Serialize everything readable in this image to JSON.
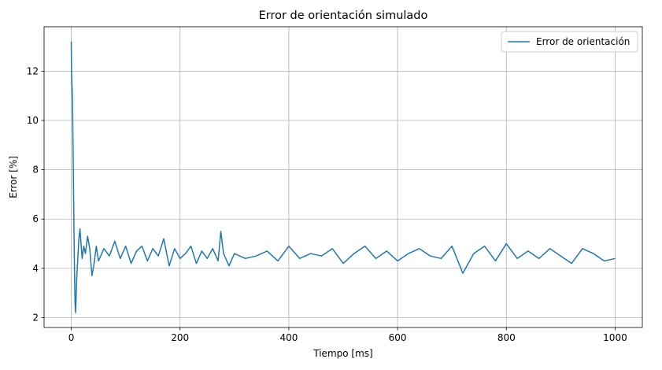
{
  "chart_data": {
    "type": "line",
    "title": "Error de orientación simulado",
    "xlabel": "Tiempo [ms]",
    "ylabel": "Error [%]",
    "xlim": [
      -50,
      1050
    ],
    "ylim": [
      1.6,
      13.8
    ],
    "xticks": [
      0,
      200,
      400,
      600,
      800,
      1000
    ],
    "yticks": [
      2,
      4,
      6,
      8,
      10,
      12
    ],
    "grid": true,
    "legend_position": "upper right",
    "series": [
      {
        "name": "Error de orientación",
        "color": "#1f77b4",
        "x": [
          0,
          0.5,
          1,
          2,
          3,
          4,
          5,
          6,
          7,
          8,
          9,
          10,
          12,
          14,
          16,
          18,
          20,
          23,
          26,
          30,
          34,
          38,
          42,
          46,
          50,
          60,
          70,
          80,
          90,
          100,
          110,
          120,
          130,
          140,
          150,
          160,
          170,
          180,
          190,
          200,
          210,
          220,
          230,
          240,
          250,
          260,
          270,
          275,
          280,
          290,
          300,
          320,
          340,
          360,
          380,
          400,
          420,
          440,
          460,
          480,
          500,
          520,
          540,
          560,
          580,
          600,
          620,
          640,
          660,
          680,
          700,
          720,
          740,
          760,
          780,
          800,
          820,
          840,
          860,
          880,
          900,
          920,
          940,
          960,
          980,
          1000
        ],
        "y": [
          13.2,
          11.9,
          11.6,
          11.0,
          9.5,
          7.5,
          5.5,
          3.8,
          2.6,
          2.2,
          2.9,
          3.6,
          4.4,
          5.2,
          5.6,
          5.0,
          4.4,
          4.9,
          4.6,
          5.3,
          4.8,
          3.7,
          4.2,
          4.9,
          4.3,
          4.8,
          4.5,
          5.1,
          4.4,
          4.9,
          4.2,
          4.7,
          4.9,
          4.3,
          4.8,
          4.5,
          5.2,
          4.1,
          4.8,
          4.4,
          4.6,
          4.9,
          4.2,
          4.7,
          4.4,
          4.8,
          4.3,
          5.5,
          4.6,
          4.1,
          4.6,
          4.4,
          4.5,
          4.7,
          4.3,
          4.9,
          4.4,
          4.6,
          4.5,
          4.8,
          4.2,
          4.6,
          4.9,
          4.4,
          4.7,
          4.3,
          4.6,
          4.8,
          4.5,
          4.4,
          4.9,
          3.8,
          4.6,
          4.9,
          4.3,
          5.0,
          4.4,
          4.7,
          4.4,
          4.8,
          4.5,
          4.2,
          4.8,
          4.6,
          4.3,
          4.4
        ]
      }
    ]
  }
}
